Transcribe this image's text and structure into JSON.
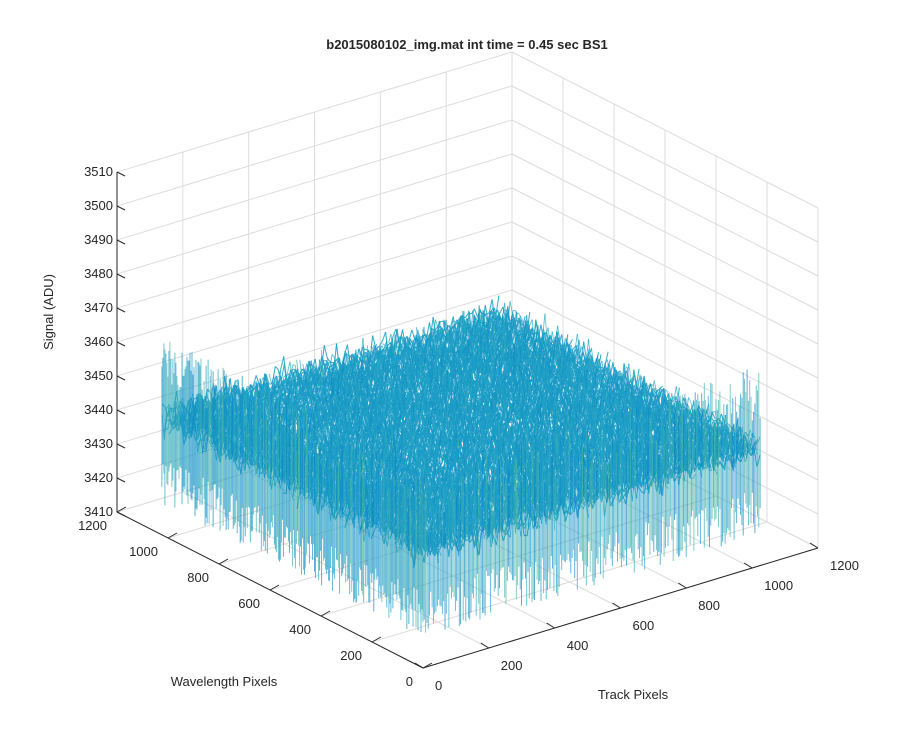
{
  "chart_data": {
    "type": "surface",
    "title": "b2015080102_img.mat int time = 0.45 sec   BS1",
    "xlabel": "Track Pixels",
    "ylabel": "Wavelength Pixels",
    "zlabel": "Signal (ADU)",
    "xlim": [
      0,
      1200
    ],
    "ylim": [
      0,
      1200
    ],
    "zlim": [
      3410,
      3510
    ],
    "x_ticks": [
      0,
      200,
      400,
      600,
      800,
      1000,
      1200
    ],
    "y_ticks": [
      0,
      200,
      400,
      600,
      800,
      1000,
      1200
    ],
    "z_ticks": [
      3410,
      3420,
      3430,
      3440,
      3450,
      3460,
      3470,
      3480,
      3490,
      3500,
      3510
    ],
    "x_tick_labels": [
      "0",
      "200",
      "400",
      "600",
      "800",
      "1000",
      "1200"
    ],
    "y_tick_labels": [
      "0",
      "200",
      "400",
      "600",
      "800",
      "1000",
      "1200"
    ],
    "z_tick_labels": [
      "3410",
      "3420",
      "3430",
      "3440",
      "3450",
      "3460",
      "3470",
      "3480",
      "3490",
      "3500",
      "3510"
    ],
    "surface": {
      "x_range": [
        0,
        1024
      ],
      "y_range": [
        0,
        1024
      ],
      "mean_signal": 3445,
      "noise_range": [
        3430,
        3470
      ],
      "colormap": "parula"
    },
    "grid": true,
    "colors": {
      "low": "#0072bd",
      "mid": "#1fa3c8",
      "high": "#e5c838",
      "axis": "#262626",
      "grid": "#dcdcdc"
    }
  }
}
